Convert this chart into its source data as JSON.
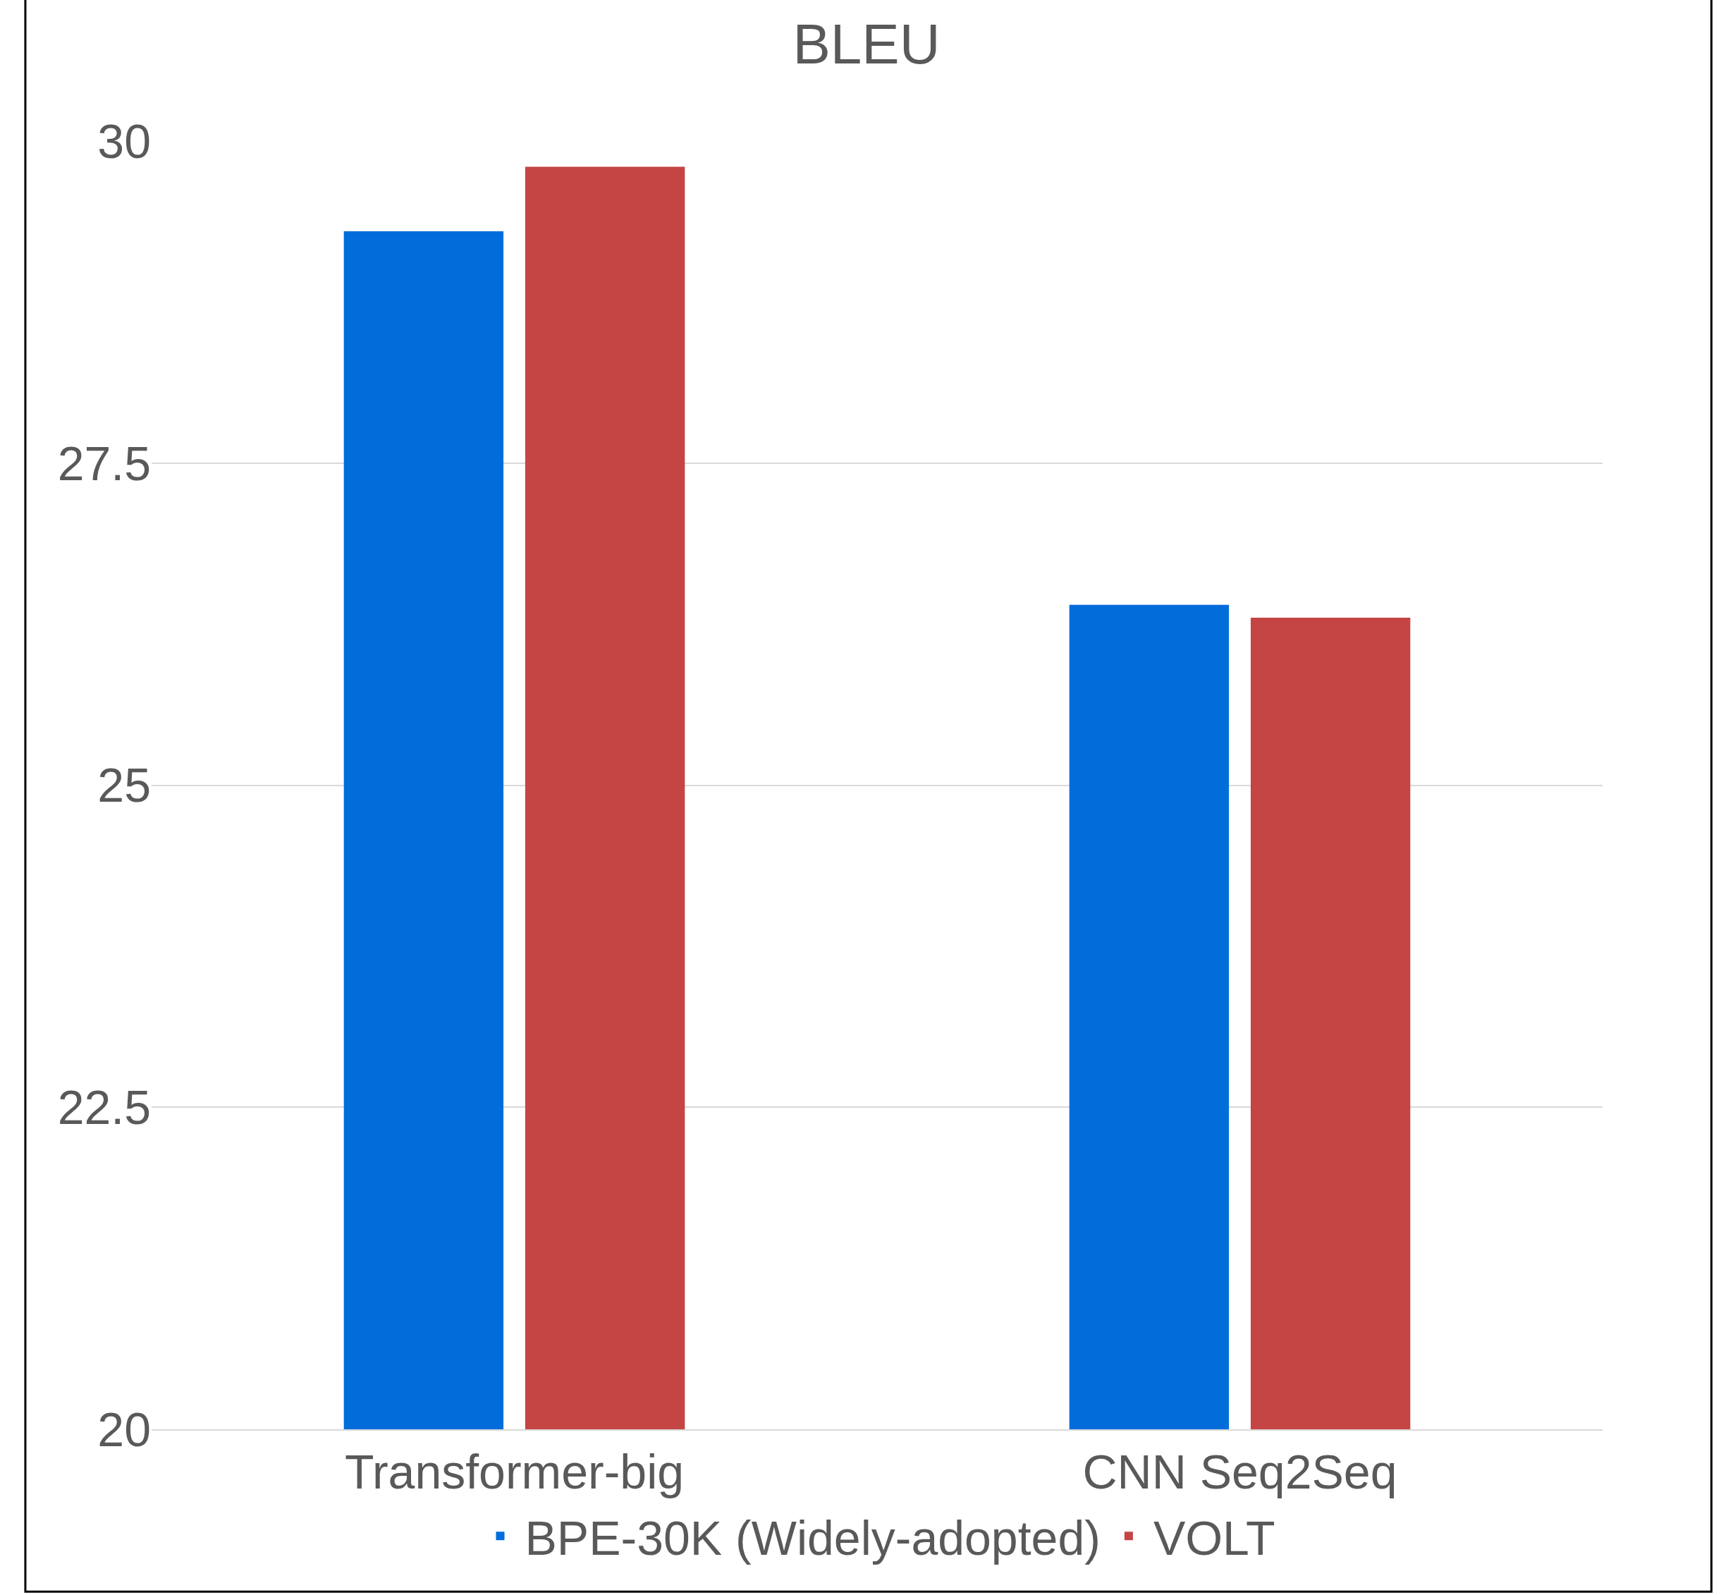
{
  "chart_data": {
    "type": "bar",
    "title": "BLEU",
    "categories": [
      "Transformer-big",
      "CNN Seq2Seq"
    ],
    "series": [
      {
        "name": "BPE-30K (Widely-adopted)",
        "color": "#006ddb",
        "values": [
          29.3,
          26.4
        ]
      },
      {
        "name": "VOLT",
        "color": "#c44543",
        "values": [
          29.8,
          26.3
        ]
      }
    ],
    "ylim": [
      20,
      30
    ],
    "yticks": [
      20,
      22.5,
      25,
      27.5,
      30
    ],
    "grid": "y",
    "legend": "bottom"
  }
}
